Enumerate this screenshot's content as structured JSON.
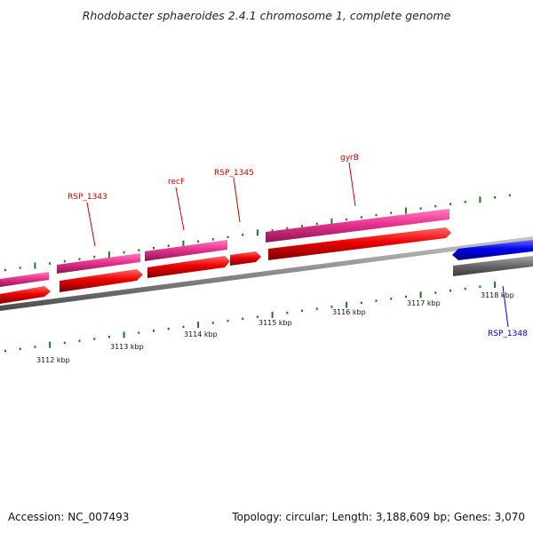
{
  "title": "Rhodobacter sphaeroides 2.4.1 chromosome 1, complete genome",
  "footer": {
    "accession": "Accession: NC_007493",
    "topology": "Topology: circular; Length: 3,188,609 bp; Genes: 3,070"
  },
  "scale_labels": [
    "3112 kbp",
    "3113 kbp",
    "3114 kbp",
    "3115 kbp",
    "3116 kbp",
    "3117 kbp",
    "3118 kbp"
  ],
  "gene_labels": [
    {
      "name": "RSP_1343",
      "color": "#cc0000"
    },
    {
      "name": "recF",
      "color": "#cc0000"
    },
    {
      "name": "RSP_1345",
      "color": "#cc0000"
    },
    {
      "name": "gyrB",
      "color": "#cc0000"
    },
    {
      "name": "RSP_1348",
      "color": "#0000cc"
    }
  ],
  "colors": {
    "backbone": "#888888",
    "forward_outer": "#e8338f",
    "forward_gene": "#ee0000",
    "reverse_gene": "#0000ee",
    "reverse_outer": "#666666",
    "tick": "#1a7a1a"
  }
}
